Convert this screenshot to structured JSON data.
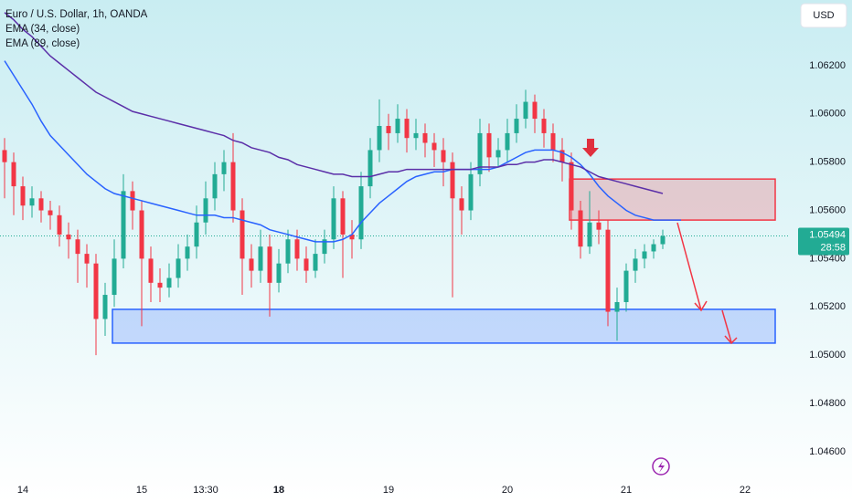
{
  "chart_data": {
    "type": "candlestick",
    "title": "Euro / U.S. Dollar, 1h, OANDA",
    "currency": "USD",
    "categories": [
      null,
      null,
      "14",
      null,
      null,
      null,
      null,
      null,
      null,
      null,
      null,
      null,
      null,
      null,
      null,
      "15",
      null,
      null,
      null,
      null,
      null,
      null,
      "13:30",
      null,
      null,
      null,
      null,
      null,
      null,
      null,
      "18",
      null,
      null,
      null,
      null,
      null,
      null,
      null,
      null,
      null,
      null,
      null,
      "19",
      null,
      null,
      null,
      null,
      null,
      null,
      null,
      null,
      null,
      null,
      null,
      null,
      "20",
      null,
      null,
      null,
      null,
      null,
      null,
      null,
      null,
      null,
      null,
      null,
      null,
      "21",
      null,
      null,
      null,
      null,
      null,
      null,
      null,
      null,
      null,
      null,
      null,
      null,
      "22",
      null,
      null,
      null,
      null
    ],
    "open": [
      1.0585,
      1.058,
      1.057,
      1.0562,
      1.0565,
      1.056,
      1.0558,
      1.055,
      1.0548,
      1.0542,
      1.0538,
      1.0515,
      1.0525,
      1.054,
      1.0568,
      1.056,
      1.054,
      1.053,
      1.0528,
      1.0532,
      1.054,
      1.0545,
      1.0555,
      1.0565,
      1.0575,
      1.058,
      1.056,
      1.054,
      1.0535,
      1.0545,
      1.053,
      1.0538,
      1.0548,
      1.054,
      1.0535,
      1.0542,
      1.0548,
      1.0565,
      1.055,
      1.0548,
      1.057,
      1.0585,
      1.0595,
      1.0592,
      1.0598,
      1.059,
      1.0592,
      1.0588,
      1.0585,
      1.058,
      1.0565,
      1.056,
      1.0575,
      1.0592,
      1.0582,
      1.0585,
      1.0592,
      1.0598,
      1.0605,
      1.0598,
      1.0592,
      1.0585,
      1.058,
      1.056,
      1.0545,
      1.0555,
      1.0552,
      1.0518,
      1.0522,
      1.0535,
      1.054,
      1.0543,
      1.0546,
      null,
      null,
      null,
      null,
      null,
      null,
      null,
      null,
      null,
      null,
      null,
      null,
      null
    ],
    "high": [
      1.059,
      1.0584,
      1.0574,
      1.057,
      1.0568,
      1.0564,
      1.0562,
      1.0555,
      1.0552,
      1.0546,
      1.0542,
      1.053,
      1.0548,
      1.0575,
      1.0572,
      1.0564,
      1.0545,
      1.0536,
      1.0538,
      1.0546,
      1.055,
      1.0562,
      1.0572,
      1.058,
      1.0585,
      1.0592,
      1.0565,
      1.0546,
      1.0552,
      1.055,
      1.0544,
      1.0552,
      1.0552,
      1.0545,
      1.0548,
      1.0552,
      1.057,
      1.0568,
      1.0556,
      1.0576,
      1.059,
      1.0606,
      1.06,
      1.0604,
      1.0602,
      1.0598,
      1.0596,
      1.0592,
      1.059,
      1.0584,
      1.057,
      1.058,
      1.0598,
      1.0596,
      1.059,
      1.0598,
      1.0604,
      1.061,
      1.0608,
      1.0602,
      1.0596,
      1.059,
      1.0584,
      1.0564,
      1.0568,
      1.056,
      1.0556,
      1.0528,
      1.0538,
      1.0544,
      1.0546,
      1.0548,
      1.0552,
      null,
      null,
      null,
      null,
      null,
      null,
      null,
      null,
      null,
      null,
      null,
      null,
      null
    ],
    "low": [
      1.0565,
      1.0558,
      1.0556,
      1.0557,
      1.0555,
      1.0552,
      1.0545,
      1.054,
      1.053,
      1.0528,
      1.05,
      1.0508,
      1.052,
      1.0536,
      1.0552,
      1.0512,
      1.0522,
      1.0522,
      1.0524,
      1.0528,
      1.0535,
      1.054,
      1.055,
      1.056,
      1.0568,
      1.0555,
      1.0525,
      1.0528,
      1.053,
      1.0516,
      1.0526,
      1.0534,
      1.0535,
      1.053,
      1.0532,
      1.0538,
      1.0544,
      1.0532,
      1.054,
      1.0544,
      1.0565,
      1.058,
      1.0585,
      1.0588,
      1.0584,
      1.0585,
      1.0582,
      1.0578,
      1.057,
      1.0524,
      1.055,
      1.0556,
      1.057,
      1.0576,
      1.0578,
      1.058,
      1.0588,
      1.0594,
      1.0592,
      1.0586,
      1.058,
      1.0572,
      1.0552,
      1.054,
      1.0542,
      1.0546,
      1.0512,
      1.0506,
      1.0518,
      1.053,
      1.0536,
      1.054,
      1.0544,
      null,
      null,
      null,
      null,
      null,
      null,
      null,
      null,
      null,
      null,
      null,
      null,
      null
    ],
    "close": [
      1.058,
      1.057,
      1.0562,
      1.0565,
      1.056,
      1.0558,
      1.055,
      1.0548,
      1.0542,
      1.0538,
      1.0515,
      1.0525,
      1.054,
      1.0568,
      1.056,
      1.054,
      1.053,
      1.0528,
      1.0532,
      1.054,
      1.0545,
      1.0555,
      1.0565,
      1.0575,
      1.058,
      1.056,
      1.054,
      1.0535,
      1.0545,
      1.053,
      1.0538,
      1.0548,
      1.054,
      1.0535,
      1.0542,
      1.0548,
      1.0565,
      1.055,
      1.0548,
      1.057,
      1.0585,
      1.0595,
      1.0592,
      1.0598,
      1.059,
      1.0592,
      1.0588,
      1.0585,
      1.058,
      1.0565,
      1.056,
      1.0575,
      1.0592,
      1.0582,
      1.0585,
      1.0592,
      1.0598,
      1.0605,
      1.0598,
      1.0592,
      1.0585,
      1.058,
      1.056,
      1.0545,
      1.0555,
      1.0552,
      1.0518,
      1.0522,
      1.0535,
      1.054,
      1.0543,
      1.0546,
      1.05494,
      null,
      null,
      null,
      null,
      null,
      null,
      null,
      null,
      null,
      null,
      null,
      null,
      null
    ],
    "up_color": "#22ab94",
    "down_color": "#f23645",
    "series": [
      {
        "name": "EMA (34, close)",
        "color": "#2962ff",
        "values": [
          1.0622,
          1.0616,
          1.061,
          1.0604,
          1.0597,
          1.0591,
          1.0587,
          1.0583,
          1.0579,
          1.0575,
          1.0572,
          1.0569,
          1.0567,
          1.0566,
          1.0565,
          1.0564,
          1.0563,
          1.0562,
          1.0561,
          1.056,
          1.0559,
          1.0558,
          1.0558,
          1.0558,
          1.0557,
          1.0557,
          1.0556,
          1.0555,
          1.0554,
          1.0552,
          1.0551,
          1.055,
          1.0549,
          1.0548,
          1.0547,
          1.0547,
          1.0547,
          1.0548,
          1.055,
          1.0555,
          1.0559,
          1.0563,
          1.0566,
          1.0569,
          1.0572,
          1.0574,
          1.0575,
          1.0576,
          1.0576,
          1.0577,
          1.0577,
          1.0577,
          1.0577,
          1.0577,
          1.0578,
          1.058,
          1.0582,
          1.0584,
          1.0585,
          1.0585,
          1.0585,
          1.0584,
          1.0582,
          1.0579,
          1.0575,
          1.057,
          1.0566,
          1.0563,
          1.056,
          1.0558,
          1.0557,
          1.0556,
          1.0556,
          1.0556,
          1.0556,
          null,
          null,
          null,
          null,
          null,
          null,
          null,
          null,
          null,
          null,
          null
        ]
      },
      {
        "name": "EMA (89, close)",
        "color": "#5b2fa8",
        "values": [
          1.0642,
          1.0639,
          1.0635,
          1.0632,
          1.0628,
          1.0624,
          1.0621,
          1.0618,
          1.0615,
          1.0612,
          1.0609,
          1.0607,
          1.0605,
          1.0603,
          1.0601,
          1.06,
          1.0599,
          1.0598,
          1.0597,
          1.0596,
          1.0595,
          1.0594,
          1.0593,
          1.0592,
          1.0591,
          1.0589,
          1.0588,
          1.0586,
          1.0585,
          1.0584,
          1.0582,
          1.0581,
          1.0579,
          1.0578,
          1.0577,
          1.0576,
          1.0575,
          1.0575,
          1.0574,
          1.0574,
          1.0574,
          1.0575,
          1.0576,
          1.0576,
          1.0577,
          1.0577,
          1.0577,
          1.0577,
          1.0577,
          1.0577,
          1.0577,
          1.0577,
          1.0578,
          1.0578,
          1.0578,
          1.0579,
          1.0579,
          1.058,
          1.058,
          1.0581,
          1.0581,
          1.058,
          1.0579,
          1.0578,
          1.0576,
          1.0574,
          1.0573,
          1.0572,
          1.0571,
          1.057,
          1.0569,
          1.0568,
          1.0567,
          null,
          null,
          null,
          null,
          null,
          null,
          null,
          null,
          null,
          null,
          null,
          null,
          null
        ]
      }
    ],
    "zones": [
      {
        "high": 1.0573,
        "low": 1.0556,
        "start": 62,
        "end": 85,
        "color": "#f23645"
      },
      {
        "high": 1.0519,
        "low": 1.0505,
        "start": 12,
        "end": 85,
        "color": "#2962ff"
      }
    ],
    "last_price": {
      "value": 1.05494,
      "label": "1.05494"
    },
    "countdown": "28:58",
    "ylim": [
      1.04505,
      1.06472
    ],
    "yticks": [
      {
        "value": 1.062,
        "label": "1.06200"
      },
      {
        "value": 1.06,
        "label": "1.06000"
      },
      {
        "value": 1.058,
        "label": "1.05800"
      },
      {
        "value": 1.056,
        "label": "1.05600"
      },
      {
        "value": 1.054,
        "label": "1.05400"
      },
      {
        "value": 1.052,
        "label": "1.05200"
      },
      {
        "value": 1.05,
        "label": "1.05000"
      },
      {
        "value": 1.048,
        "label": "1.04800"
      },
      {
        "value": 1.046,
        "label": "1.04600"
      }
    ],
    "grid": false
  }
}
